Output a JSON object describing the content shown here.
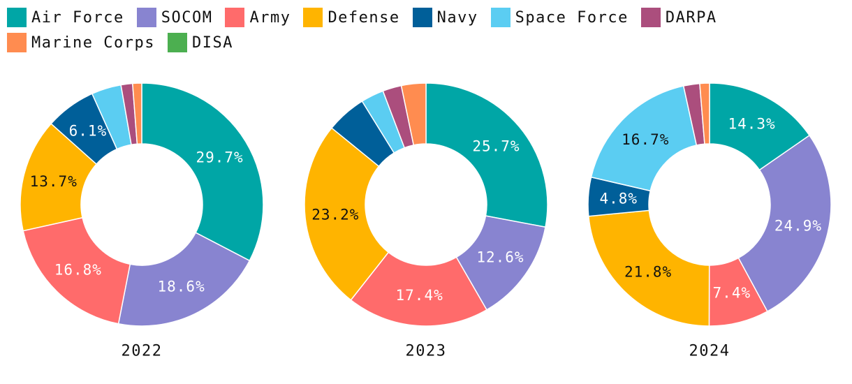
{
  "chart_data": {
    "type": "pie",
    "variant": "donut",
    "legend_position": "top",
    "categories": [
      "Air Force",
      "SOCOM",
      "Army",
      "Defense",
      "Navy",
      "Space Force",
      "DARPA",
      "Marine Corps",
      "DISA"
    ],
    "colors": [
      "#00a6a6",
      "#8884d0",
      "#ff6b6b",
      "#ffb400",
      "#005f99",
      "#5bcdf2",
      "#ab4e7d",
      "#ff8c50",
      "#4caf50"
    ],
    "label_colors": [
      "#ffffff",
      "#ffffff",
      "#ffffff",
      "#111111",
      "#ffffff",
      "#111111",
      "#ffffff",
      "#111111",
      "#ffffff"
    ],
    "charts": [
      {
        "title": "2022",
        "values": [
          29.7,
          18.6,
          16.8,
          13.7,
          6.1,
          3.6,
          1.4,
          1.1,
          0.0
        ],
        "labels": [
          "29.7%",
          "18.6%",
          "16.8%",
          "13.7%",
          "6.1%",
          "",
          "",
          "",
          ""
        ]
      },
      {
        "title": "2023",
        "values": [
          25.7,
          12.6,
          17.4,
          23.2,
          4.9,
          2.8,
          2.3,
          3.0,
          0.0
        ],
        "labels": [
          "25.7%",
          "12.6%",
          "17.4%",
          "23.2%",
          "",
          "",
          "",
          "",
          ""
        ]
      },
      {
        "title": "2024",
        "values": [
          14.3,
          24.9,
          7.4,
          21.8,
          4.8,
          16.7,
          2.0,
          1.2,
          0.0
        ],
        "labels": [
          "14.3%",
          "24.9%",
          "7.4%",
          "21.8%",
          "4.8%",
          "16.7%",
          "",
          "",
          ""
        ]
      }
    ]
  }
}
